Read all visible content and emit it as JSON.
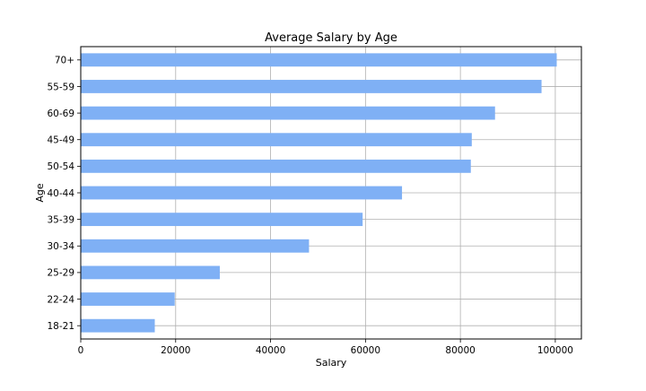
{
  "chart_data": {
    "type": "bar",
    "orientation": "horizontal",
    "title": "Average Salary by Age",
    "xlabel": "Salary",
    "ylabel": "Age",
    "categories": [
      "18-21",
      "22-24",
      "25-29",
      "30-34",
      "35-39",
      "40-44",
      "50-54",
      "45-49",
      "60-69",
      "55-59",
      "70+"
    ],
    "values": [
      15600,
      19800,
      29300,
      48100,
      59400,
      67700,
      82200,
      82400,
      87300,
      97100,
      100300
    ],
    "xlim": [
      0,
      105500
    ],
    "xticks": [
      0,
      20000,
      40000,
      60000,
      80000,
      100000
    ],
    "xtick_labels": [
      "0",
      "20000",
      "40000",
      "60000",
      "80000",
      "100000"
    ],
    "grid": true,
    "bar_color": "#7fb0f5"
  }
}
